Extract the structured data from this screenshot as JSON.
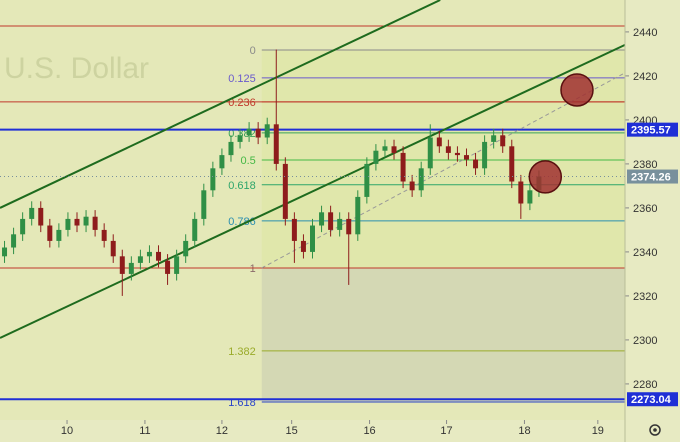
{
  "chart_data": {
    "type": "candlestick",
    "watermark": "U.S. Dollar",
    "xlim": [
      -0.5,
      68.5
    ],
    "ylim": [
      2263.6,
      2454.5
    ],
    "yticks": [
      2280,
      2300,
      2320,
      2340,
      2360,
      2380,
      2400,
      2420,
      2440
    ],
    "xticks": [
      {
        "value": 6.9,
        "label": "10"
      },
      {
        "value": 15.5,
        "label": "11"
      },
      {
        "value": 24.0,
        "label": "12"
      },
      {
        "value": 31.7,
        "label": "15"
      },
      {
        "value": 40.3,
        "label": "16"
      },
      {
        "value": 48.8,
        "label": "17"
      },
      {
        "value": 57.4,
        "label": "18"
      },
      {
        "value": 65.5,
        "label": "19"
      }
    ],
    "up_color": "#2f8f46",
    "down_color": "#8e1c1c",
    "open": [
      2338,
      2342,
      2348,
      2355,
      2360,
      2352,
      2345,
      2350,
      2355,
      2352,
      2356,
      2350,
      2345,
      2338,
      2330,
      2335,
      2338,
      2340,
      2336,
      2330,
      2338,
      2345,
      2355,
      2368,
      2378,
      2384,
      2390,
      2393,
      2396,
      2392,
      2398,
      2380,
      2355,
      2345,
      2340,
      2352,
      2358,
      2350,
      2355,
      2348,
      2365,
      2380,
      2386,
      2388,
      2385,
      2372,
      2368,
      2378,
      2392,
      2388,
      2385,
      2384,
      2382,
      2378,
      2390,
      2393,
      2388,
      2372,
      2362,
      2368
    ],
    "high": [
      2345,
      2351,
      2358,
      2363,
      2363,
      2355,
      2353,
      2358,
      2358,
      2359,
      2359,
      2353,
      2348,
      2341,
      2338,
      2341,
      2343,
      2343,
      2339,
      2341,
      2348,
      2358,
      2371,
      2381,
      2387,
      2393,
      2396,
      2399,
      2399,
      2401,
      2432,
      2383,
      2358,
      2348,
      2355,
      2361,
      2361,
      2358,
      2358,
      2368,
      2383,
      2389,
      2391,
      2391,
      2388,
      2375,
      2381,
      2398,
      2395,
      2391,
      2388,
      2387,
      2385,
      2393,
      2396,
      2396,
      2391,
      2375,
      2371,
      2377
    ],
    "low": [
      2335,
      2339,
      2345,
      2352,
      2349,
      2342,
      2342,
      2347,
      2349,
      2349,
      2347,
      2342,
      2335,
      2320,
      2327,
      2332,
      2335,
      2333,
      2325,
      2327,
      2335,
      2342,
      2352,
      2365,
      2375,
      2381,
      2387,
      2390,
      2389,
      2389,
      2377,
      2352,
      2335,
      2337,
      2337,
      2349,
      2347,
      2347,
      2325,
      2345,
      2362,
      2377,
      2383,
      2382,
      2369,
      2365,
      2365,
      2375,
      2385,
      2382,
      2381,
      2379,
      2375,
      2375,
      2387,
      2385,
      2369,
      2355,
      2359,
      2365
    ],
    "close": [
      2342,
      2348,
      2355,
      2360,
      2352,
      2345,
      2350,
      2355,
      2352,
      2356,
      2350,
      2345,
      2338,
      2330,
      2335,
      2338,
      2340,
      2336,
      2330,
      2338,
      2345,
      2355,
      2368,
      2378,
      2384,
      2390,
      2393,
      2396,
      2392,
      2398,
      2380,
      2355,
      2345,
      2340,
      2352,
      2358,
      2350,
      2355,
      2348,
      2365,
      2380,
      2386,
      2388,
      2385,
      2372,
      2368,
      2378,
      2392,
      2388,
      2385,
      2384,
      2382,
      2378,
      2390,
      2393,
      2388,
      2372,
      2362,
      2368,
      2374.26
    ],
    "last_price_color": "#78909c",
    "fib_start": 28.4,
    "fib_levels": [
      {
        "ratio": 0,
        "price": 2431.8,
        "color": "#8a8a8a"
      },
      {
        "ratio": 0.125,
        "price": 2419.1,
        "color": "#6a5acd"
      },
      {
        "ratio": 0.236,
        "price": 2408.2,
        "color": "#c0392b"
      },
      {
        "ratio": 0.382,
        "price": 2394.1,
        "color": "#3aa35a"
      },
      {
        "ratio": 0.5,
        "price": 2381.8,
        "color": "#45b845"
      },
      {
        "ratio": 0.618,
        "price": 2370.5,
        "color": "#2ea56b"
      },
      {
        "ratio": 0.786,
        "price": 2354.1,
        "color": "#2b8fb0"
      },
      {
        "ratio": 1,
        "price": 2332.7,
        "color": "#8a6a6a"
      },
      {
        "ratio": 1.382,
        "price": 2295,
        "color": "#9aab2a"
      },
      {
        "ratio": 1.618,
        "price": 2271.8,
        "color": "#2a44c8"
      }
    ],
    "price_lines": [
      {
        "value": 2442.7,
        "color": "#c0392b",
        "badge": false
      },
      {
        "value": 2408.2,
        "color": "#c0392b",
        "badge": false
      },
      {
        "value": 2332.7,
        "color": "#c0392b",
        "badge": false
      },
      {
        "value": 2395.57,
        "color": "#1f2fd6",
        "badge": true
      },
      {
        "value": 2273.04,
        "color": "#1f2fd6",
        "badge": true
      }
    ],
    "trend_lines": [
      {
        "x": [
          -0.5,
          48.1
        ],
        "y": [
          2360,
          2454.5
        ],
        "color": "#1e6b1e",
        "dashed": false
      },
      {
        "x": [
          -0.5,
          68.5
        ],
        "y": [
          2300.9,
          2434.1
        ],
        "color": "#1e6b1e",
        "dashed": false
      },
      {
        "x": [
          28.4,
          68.5
        ],
        "y": [
          2332.7,
          2421.4
        ],
        "color": "#999999",
        "dashed": true
      }
    ],
    "markers": [
      {
        "x": 63.2,
        "y": 2413.6,
        "color": "#a03030"
      },
      {
        "x": 59.7,
        "y": 2374.1,
        "color": "#a03030"
      }
    ]
  }
}
